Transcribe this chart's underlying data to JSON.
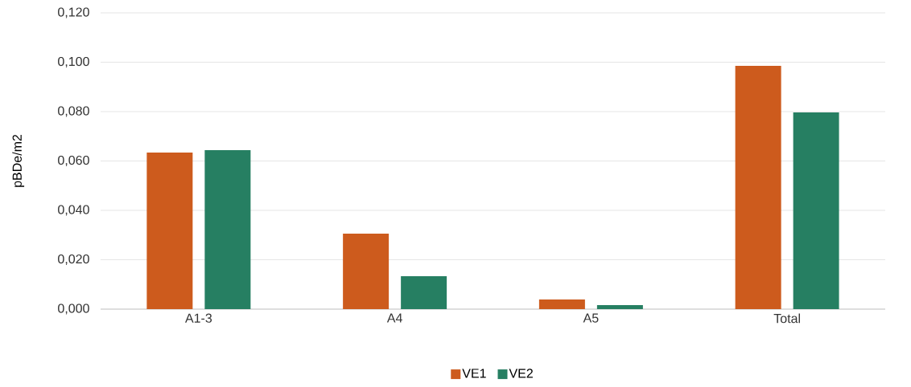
{
  "chart_data": {
    "type": "bar",
    "ylabel": "pBDe/m2",
    "categories": [
      "A1-3",
      "A4",
      "A5",
      "Total"
    ],
    "series": [
      {
        "name": "VE1",
        "color": "#cd5b1d",
        "values": [
          0.0634,
          0.0306,
          0.0039,
          0.0985
        ]
      },
      {
        "name": "VE2",
        "color": "#267f62",
        "values": [
          0.0644,
          0.0133,
          0.0016,
          0.0797
        ]
      }
    ],
    "ylim": [
      0,
      0.12
    ],
    "yticks": [
      {
        "value": 0,
        "label": "0,000"
      },
      {
        "value": 0.02,
        "label": "0,020"
      },
      {
        "value": 0.04,
        "label": "0,040"
      },
      {
        "value": 0.06,
        "label": "0,060"
      },
      {
        "value": 0.08,
        "label": "0,080"
      },
      {
        "value": 0.1,
        "label": "0,100"
      },
      {
        "value": 0.12,
        "label": "0,120"
      }
    ],
    "grid": "y",
    "legend": "bottom"
  }
}
